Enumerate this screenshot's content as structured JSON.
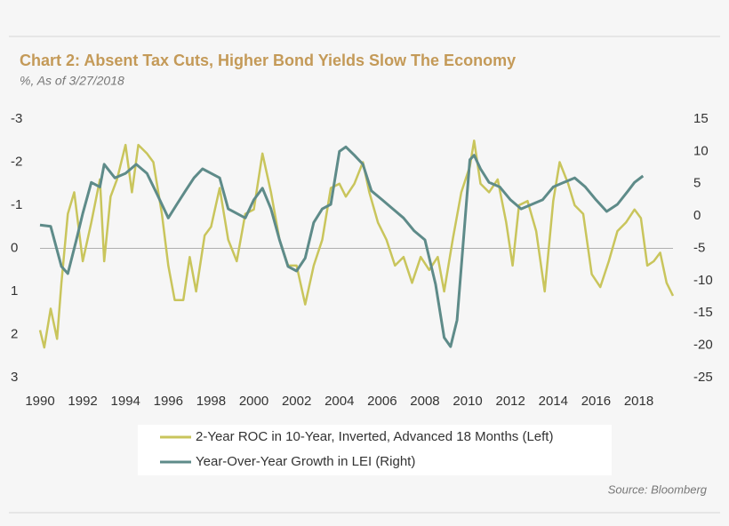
{
  "chart_data": {
    "type": "line",
    "title": "Chart 2: Absent Tax Cuts, Higher Bond Yields Slow The Economy",
    "subtitle": "%, As of 3/27/2018",
    "source": "Source: Bloomberg",
    "xlim": [
      1990,
      2019.6
    ],
    "xticks": [
      1990,
      1992,
      1994,
      1996,
      1998,
      2000,
      2002,
      2004,
      2006,
      2008,
      2010,
      2012,
      2014,
      2016,
      2018
    ],
    "ylim": [
      3,
      -3
    ],
    "yticks": [
      -3,
      -2,
      -1,
      0,
      1,
      2,
      3
    ],
    "y2lim": [
      -25,
      15
    ],
    "y2ticks": [
      -25,
      -20,
      -15,
      -10,
      -5,
      0,
      5,
      10,
      15
    ],
    "series": [
      {
        "name": "2-Year ROC in 10-Year, Inverted,  Advanced 18 Months (Left)",
        "color": "#c9c55c",
        "x": [
          1990.0,
          1990.2,
          1990.5,
          1990.8,
          1991.0,
          1991.3,
          1991.6,
          1992.0,
          1992.4,
          1992.8,
          1993.0,
          1993.3,
          1993.6,
          1994.0,
          1994.3,
          1994.6,
          1995.0,
          1995.3,
          1995.7,
          1996.0,
          1996.3,
          1996.7,
          1997.0,
          1997.3,
          1997.7,
          1998.0,
          1998.4,
          1998.8,
          1999.2,
          1999.6,
          2000.0,
          2000.4,
          2000.8,
          2001.2,
          2001.6,
          2002.0,
          2002.4,
          2002.8,
          2003.2,
          2003.6,
          2004.0,
          2004.3,
          2004.7,
          2005.1,
          2005.4,
          2005.8,
          2006.2,
          2006.6,
          2007.0,
          2007.4,
          2007.8,
          2008.2,
          2008.6,
          2008.9,
          2009.3,
          2009.7,
          2010.1,
          2010.3,
          2010.6,
          2011.0,
          2011.4,
          2011.8,
          2012.1,
          2012.4,
          2012.8,
          2013.2,
          2013.6,
          2014.0,
          2014.3,
          2014.7,
          2015.0,
          2015.4,
          2015.8,
          2016.2,
          2016.6,
          2017.0,
          2017.4,
          2017.8,
          2018.1,
          2018.4,
          2018.7,
          2019.0,
          2019.3,
          2019.6
        ],
        "values": [
          1.9,
          2.3,
          1.4,
          2.1,
          0.8,
          -0.8,
          -1.3,
          0.3,
          -0.6,
          -1.6,
          0.3,
          -1.2,
          -1.6,
          -2.4,
          -1.3,
          -2.4,
          -2.2,
          -2.0,
          -0.8,
          0.4,
          1.2,
          1.2,
          0.2,
          1.0,
          -0.3,
          -0.5,
          -1.4,
          -0.2,
          0.3,
          -0.8,
          -0.9,
          -2.2,
          -1.3,
          -0.2,
          0.4,
          0.4,
          1.3,
          0.4,
          -0.2,
          -1.4,
          -1.5,
          -1.2,
          -1.5,
          -2.0,
          -1.3,
          -0.6,
          -0.2,
          0.4,
          0.2,
          0.8,
          0.2,
          0.5,
          0.2,
          1.0,
          -0.2,
          -1.3,
          -1.9,
          -2.5,
          -1.5,
          -1.3,
          -1.6,
          -0.6,
          0.4,
          -1.0,
          -1.1,
          -0.4,
          1.0,
          -1.1,
          -2.0,
          -1.5,
          -1.0,
          -0.8,
          0.6,
          0.9,
          0.3,
          -0.4,
          -0.6,
          -0.9,
          -0.7,
          0.4,
          0.3,
          0.1,
          0.8,
          1.1
        ]
      },
      {
        "name": "Year-Over-Year Growth in LEI (Right)",
        "color": "#5e8b89",
        "axis": "y2",
        "x": [
          1990.0,
          1990.5,
          1991.0,
          1991.3,
          1991.7,
          1992.0,
          1992.4,
          1992.8,
          1993.0,
          1993.5,
          1994.0,
          1994.5,
          1995.0,
          1995.5,
          1996.0,
          1996.4,
          1996.8,
          1997.2,
          1997.6,
          1998.0,
          1998.4,
          1998.8,
          1999.2,
          1999.6,
          2000.0,
          2000.4,
          2000.8,
          2001.2,
          2001.6,
          2002.0,
          2002.4,
          2002.8,
          2003.2,
          2003.6,
          2004.0,
          2004.3,
          2004.7,
          2005.1,
          2005.5,
          2006.0,
          2006.5,
          2007.0,
          2007.5,
          2008.0,
          2008.5,
          2008.9,
          2009.2,
          2009.5,
          2009.8,
          2010.1,
          2010.3,
          2010.6,
          2011.0,
          2011.5,
          2012.0,
          2012.5,
          2013.0,
          2013.5,
          2014.0,
          2014.5,
          2015.0,
          2015.5,
          2016.0,
          2016.5,
          2017.0,
          2017.5,
          2017.8,
          2018.2
        ],
        "values": [
          -1.4,
          -1.6,
          -7.8,
          -8.9,
          -3.7,
          0.4,
          5.2,
          4.5,
          8.0,
          5.9,
          6.6,
          8.0,
          6.6,
          3.2,
          -0.3,
          1.8,
          3.9,
          5.9,
          7.3,
          6.6,
          5.9,
          1.1,
          0.4,
          -0.3,
          2.5,
          4.3,
          1.1,
          -3.7,
          -7.8,
          -8.5,
          -6.5,
          -1.0,
          1.1,
          1.8,
          10.0,
          10.7,
          9.4,
          8.0,
          3.9,
          2.5,
          1.1,
          -0.3,
          -2.3,
          -3.7,
          -10.6,
          -18.8,
          -20.2,
          -16.1,
          -3.7,
          8.7,
          9.4,
          7.3,
          5.2,
          4.5,
          2.5,
          1.1,
          1.8,
          2.5,
          4.5,
          5.2,
          5.9,
          4.5,
          2.5,
          0.7,
          1.8,
          3.9,
          5.2,
          6.2
        ]
      }
    ]
  }
}
